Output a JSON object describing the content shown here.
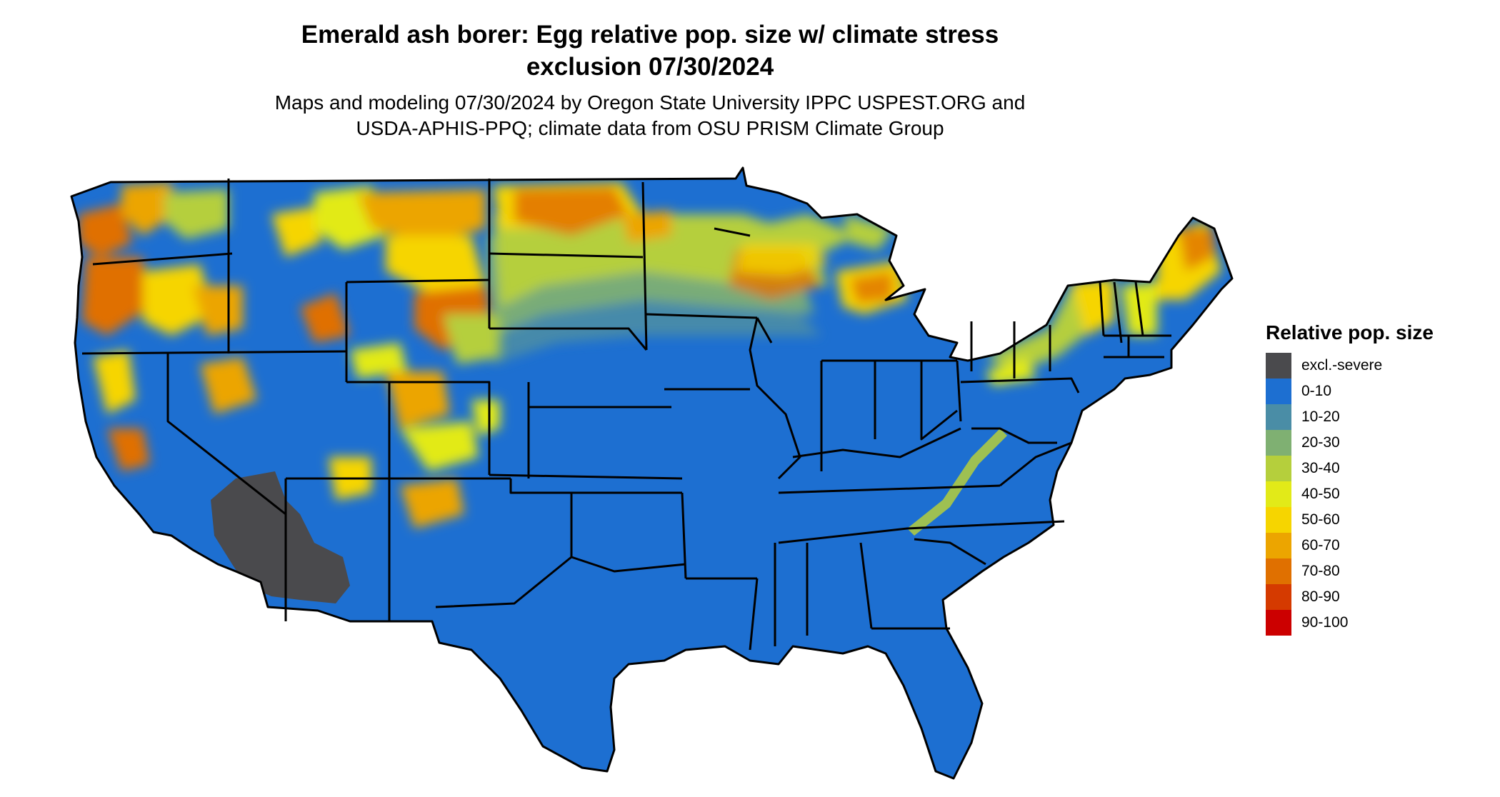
{
  "title_lines": [
    "Emerald ash borer: Egg relative pop. size w/ climate stress",
    "exclusion 07/30/2024"
  ],
  "subtitle_lines": [
    "Maps and modeling 07/30/2024 by Oregon State University IPPC USPEST.ORG and",
    "USDA-APHIS-PPQ; climate data from OSU PRISM Climate Group"
  ],
  "legend": {
    "title": "Relative pop. size",
    "items": [
      {
        "label": "excl.-severe",
        "color": "#4a4a4d"
      },
      {
        "label": "0-10",
        "color": "#1d6fd1"
      },
      {
        "label": "10-20",
        "color": "#4a8da6"
      },
      {
        "label": "20-30",
        "color": "#7fb072"
      },
      {
        "label": "30-40",
        "color": "#b5cf3c"
      },
      {
        "label": "40-50",
        "color": "#e2ea18"
      },
      {
        "label": "50-60",
        "color": "#f6d500"
      },
      {
        "label": "60-70",
        "color": "#eca500"
      },
      {
        "label": "70-80",
        "color": "#e07000"
      },
      {
        "label": "80-90",
        "color": "#d53a00"
      },
      {
        "label": "90-100",
        "color": "#cc0000"
      }
    ]
  }
}
